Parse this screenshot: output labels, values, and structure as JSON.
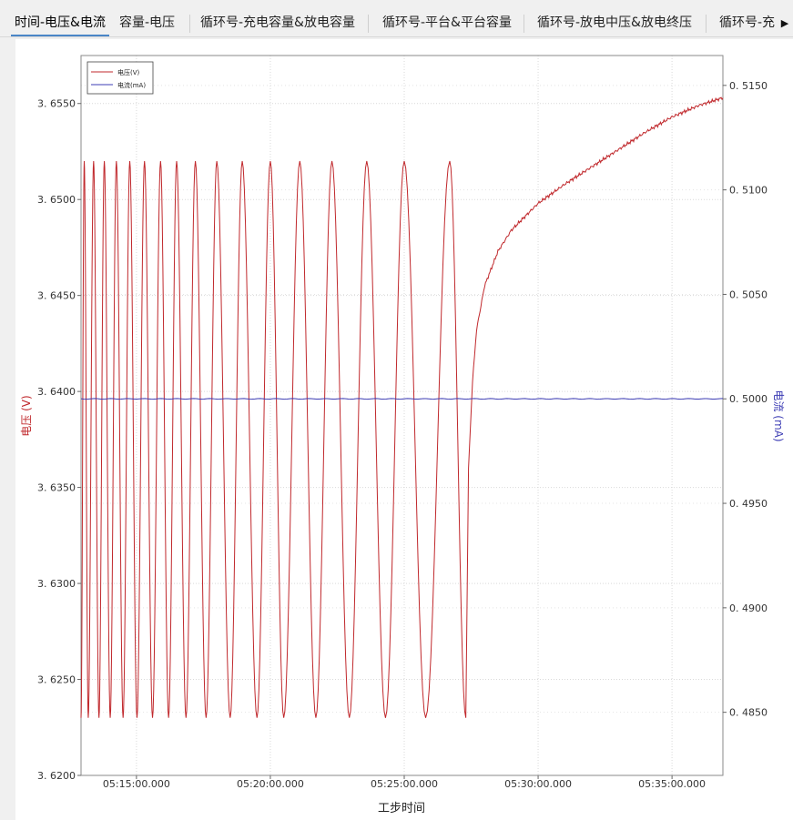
{
  "tabs": [
    {
      "label": "时间-电压&电流",
      "active": true
    },
    {
      "label": "容量-电压",
      "active": false
    },
    {
      "label": "循环号-充电容量&放电容量",
      "active": false
    },
    {
      "label": "循环号-平台&平台容量",
      "active": false
    },
    {
      "label": "循环号-放电中压&放电终压",
      "active": false
    },
    {
      "label": "循环号-充",
      "active": false
    }
  ],
  "chart_data": {
    "type": "line",
    "title": "",
    "xlabel": "工步时间",
    "ylabel_left": "电压 (V)",
    "ylabel_right": "电流 (mA)",
    "x_ticks": [
      "05:15:00.000",
      "05:20:00.000",
      "05:25:00.000",
      "05:30:00.000",
      "05:35:00.000"
    ],
    "x_tick_minutes": [
      15,
      20,
      25,
      30,
      35
    ],
    "xlim_minutes": [
      12.93,
      36.9
    ],
    "y_left_ticks": [
      "3.6200",
      "3.6250",
      "3.6300",
      "3.6350",
      "3.6400",
      "3.6450",
      "3.6500",
      "3.6550"
    ],
    "y_left_lim": [
      3.62,
      3.6575
    ],
    "y_right_ticks": [
      "0.4850",
      "0.4900",
      "0.4950",
      "0.5000",
      "0.5050",
      "0.5100",
      "0.5150"
    ],
    "y_right_lim": [
      0.48198,
      0.51643
    ],
    "grid": true,
    "legend_position": "top-left",
    "series": [
      {
        "name": "电压(V)",
        "axis": "left",
        "color": "#c0282c",
        "oscillation": {
          "peaks_minutes": [
            13.05,
            13.4,
            13.8,
            14.25,
            14.75,
            15.3,
            15.9,
            16.5,
            17.2,
            18.0,
            18.95,
            20.0,
            21.1,
            22.3,
            23.6,
            25.0,
            26.7
          ],
          "troughs_minutes": [
            12.93,
            13.2,
            13.6,
            14.02,
            14.5,
            15.02,
            15.6,
            16.2,
            16.85,
            17.6,
            18.5,
            19.5,
            20.5,
            21.7,
            22.95,
            24.3,
            25.8,
            27.3
          ],
          "peak_value": 3.652,
          "trough_value": 3.623
        },
        "recovery": [
          {
            "t": 27.3,
            "v": 3.623
          },
          {
            "t": 27.4,
            "v": 3.636
          },
          {
            "t": 27.55,
            "v": 3.6405
          },
          {
            "t": 27.7,
            "v": 3.6432
          },
          {
            "t": 28.0,
            "v": 3.6455
          },
          {
            "t": 28.5,
            "v": 3.6473
          },
          {
            "t": 29.0,
            "v": 3.6484
          },
          {
            "t": 30.0,
            "v": 3.6498
          },
          {
            "t": 31.0,
            "v": 3.6508
          },
          {
            "t": 32.0,
            "v": 3.6517
          },
          {
            "t": 33.0,
            "v": 3.6526
          },
          {
            "t": 34.0,
            "v": 3.6535
          },
          {
            "t": 35.0,
            "v": 3.6543
          },
          {
            "t": 36.0,
            "v": 3.6549
          },
          {
            "t": 36.9,
            "v": 3.6553
          }
        ]
      },
      {
        "name": "电流(mA)",
        "axis": "right",
        "color": "#3c3cb4",
        "points": [
          {
            "t": 12.93,
            "v": 0.5
          },
          {
            "t": 36.9,
            "v": 0.5
          }
        ]
      }
    ]
  }
}
